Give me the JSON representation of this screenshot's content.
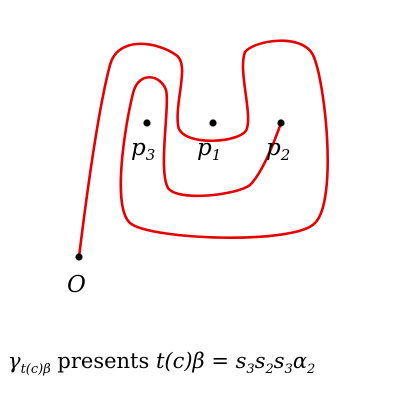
{
  "diagram": {
    "points": [
      {
        "id": "p3",
        "base": "p",
        "sub": "3"
      },
      {
        "id": "p1",
        "base": "p",
        "sub": "1"
      },
      {
        "id": "p2",
        "base": "p",
        "sub": "2"
      }
    ],
    "origin_label": "O",
    "curve_color": "#e60000",
    "point_color": "#000000"
  },
  "caption": {
    "gamma": "γ",
    "gamma_sub": "t(c)β",
    "presents": " presents ",
    "lhs": "t(c)β",
    "equals": " = ",
    "rhs_parts": [
      {
        "base": "s",
        "sub": "3"
      },
      {
        "base": "s",
        "sub": "2"
      },
      {
        "base": "s",
        "sub": "3"
      },
      {
        "base": "α",
        "sub": "2"
      }
    ]
  }
}
